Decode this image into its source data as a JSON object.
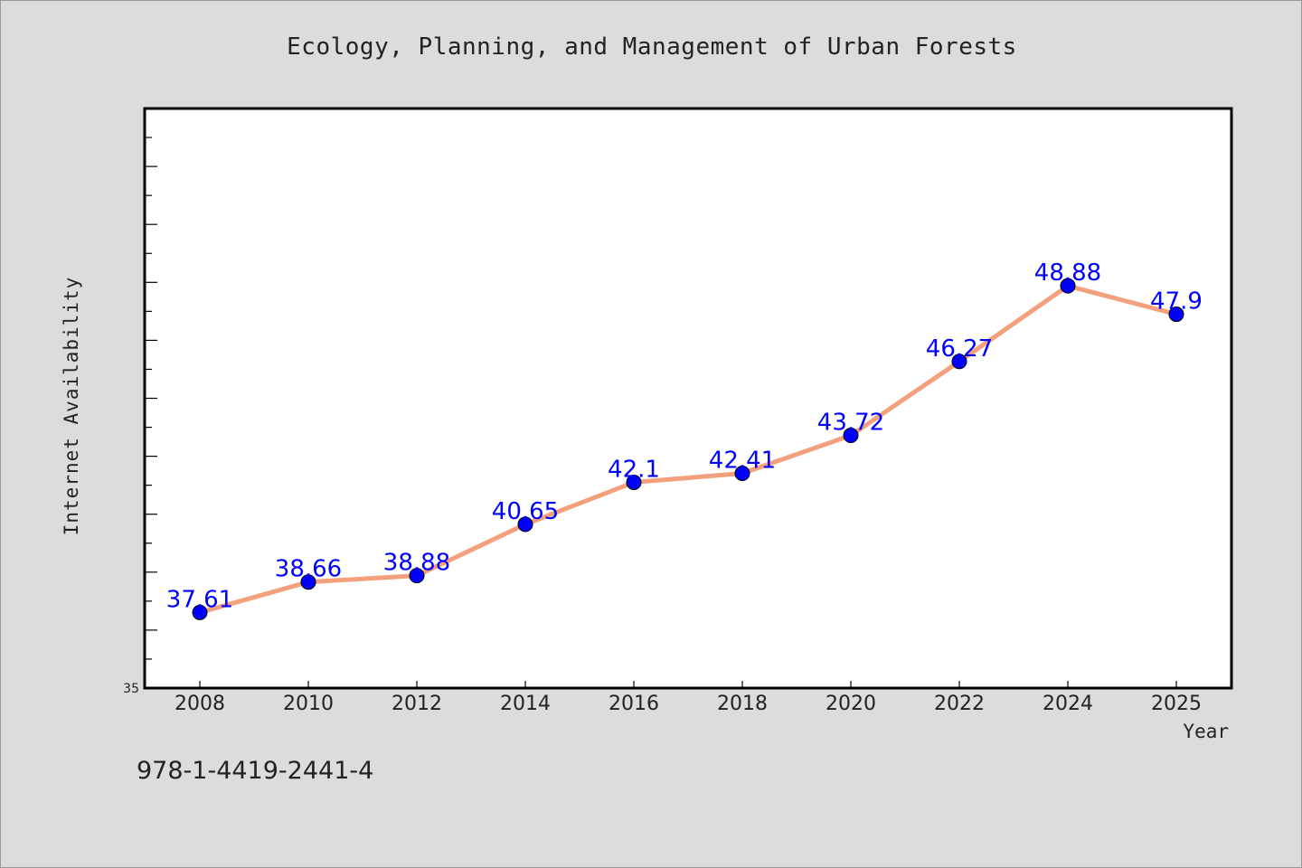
{
  "chart_data": {
    "type": "line",
    "title": "Ecology, Planning, and Management of Urban Forests",
    "xlabel": "Year",
    "ylabel": "Internet Availability",
    "categories": [
      "2008",
      "2010",
      "2012",
      "2014",
      "2016",
      "2018",
      "2020",
      "2022",
      "2024",
      "2025"
    ],
    "series": [
      {
        "values": [
          37.61,
          38.66,
          38.88,
          40.65,
          42.1,
          42.41,
          43.72,
          46.27,
          48.88,
          47.9
        ],
        "labels": [
          "37.61",
          "38.66",
          "38.88",
          "40.65",
          "42.1",
          "42.41",
          "43.72",
          "46.27",
          "48.88",
          "47.9"
        ]
      }
    ],
    "y_tick_labels": [
      "35"
    ],
    "ylim": [
      35,
      55
    ],
    "grid": false,
    "legend": "none",
    "line_color": "#f4a07c",
    "marker_color": "#0000ff",
    "label_color": "#0000ff",
    "plot_background": "#ffffff",
    "page_background": "#dcdcdc"
  },
  "footnote": "978-1-4419-2441-4"
}
